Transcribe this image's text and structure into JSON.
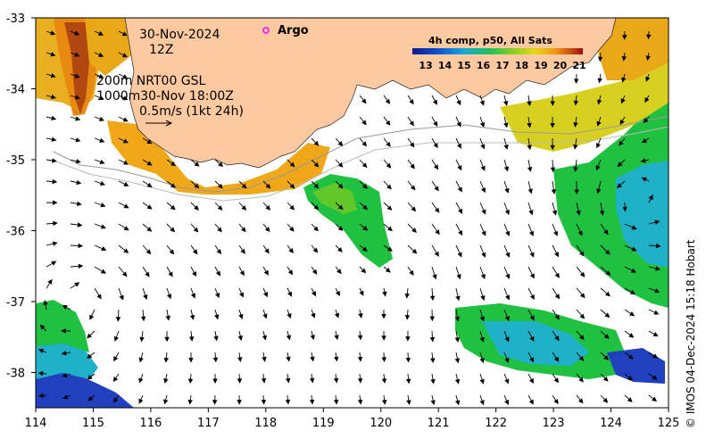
{
  "header": {
    "date": "30-Nov-2024",
    "hour": "12Z",
    "depth_line1": "200m  NRT00 GSL",
    "depth_line2": "1000m30-Nov 18:00Z",
    "scale_text": "0.5m/s (1kt 24h)"
  },
  "legend": {
    "title": "4h comp, p50, All Sats",
    "ticks": [
      "13",
      "14",
      "15",
      "16",
      "17",
      "18",
      "19",
      "20",
      "21"
    ],
    "argo_label": "Argo"
  },
  "axes": {
    "x_ticks": [
      "114",
      "115",
      "116",
      "117",
      "118",
      "119",
      "120",
      "121",
      "122",
      "123",
      "124",
      "125"
    ],
    "y_ticks": [
      "-33",
      "-34",
      "-35",
      "-36",
      "-37",
      "-38"
    ]
  },
  "colors": {
    "land": "#fdc9a0",
    "cold": "#2040c0",
    "cool": "#20b0c8",
    "mid": "#20c040",
    "warm": "#d8d020",
    "hot": "#e88a10",
    "hottest": "#b04810",
    "argo_marker": "#ff00ff"
  },
  "credit": "© IMOS 04-Dec-2024 15:18 Hobart"
}
